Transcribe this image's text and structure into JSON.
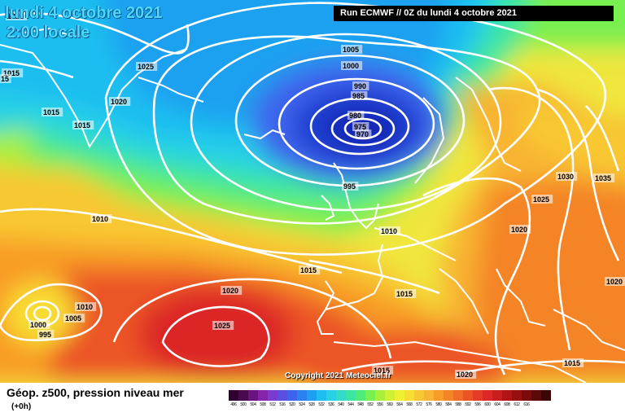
{
  "header": {
    "date_title": "lundi 4 octobre 2021",
    "time_title": "2:00 locale",
    "run_label": "Run ECMWF // 0Z du lundi 4 octobre 2021"
  },
  "copyright": "Copyright 2021 Meteociel.fr",
  "footer": {
    "field_label": "Géop. z500, pression niveau mer",
    "forecast_step": "(+0h)"
  },
  "color_scale": {
    "colors": [
      "#300030",
      "#4b0a50",
      "#6a1482",
      "#8424aa",
      "#7a3cd0",
      "#5a50e0",
      "#3c64ec",
      "#2a82f0",
      "#1ea0f0",
      "#1ebef0",
      "#28d2e6",
      "#34dcc8",
      "#3ce6a0",
      "#50ec78",
      "#78f050",
      "#a8f03c",
      "#d2f032",
      "#f0f032",
      "#f8dc32",
      "#f8c832",
      "#f8b432",
      "#f89c28",
      "#f48428",
      "#f06c28",
      "#ec5428",
      "#e43c28",
      "#dc2828",
      "#c81e1e",
      "#b01414",
      "#961010",
      "#7a0c0c",
      "#5a0a0a",
      "#3c0606"
    ],
    "labels": [
      "496",
      "500",
      "504",
      "508",
      "512",
      "516",
      "520",
      "524",
      "528",
      "532",
      "536",
      "540",
      "544",
      "548",
      "552",
      "556",
      "560",
      "564",
      "568",
      "572",
      "576",
      "580",
      "584",
      "588",
      "592",
      "596",
      "600",
      "604",
      "608",
      "612",
      "616",
      "",
      ""
    ]
  },
  "isobar_labels": [
    {
      "text": "1020"
    },
    {
      "text": "1015"
    },
    {
      "text": "15"
    },
    {
      "text": "1025"
    },
    {
      "text": "1020"
    },
    {
      "text": "1015"
    },
    {
      "text": "1015"
    },
    {
      "text": "1005"
    },
    {
      "text": "1000"
    },
    {
      "text": "990"
    },
    {
      "text": "985"
    },
    {
      "text": "980"
    },
    {
      "text": "975"
    },
    {
      "text": "970"
    },
    {
      "text": "995"
    },
    {
      "text": "1010"
    },
    {
      "text": "1010"
    },
    {
      "text": "1015"
    },
    {
      "text": "1030"
    },
    {
      "text": "1035"
    },
    {
      "text": "1025"
    },
    {
      "text": "1020"
    },
    {
      "text": "1020"
    },
    {
      "text": "1015"
    },
    {
      "text": "1020"
    },
    {
      "text": "1025"
    },
    {
      "text": "1010"
    },
    {
      "text": "1005"
    },
    {
      "text": "1000"
    },
    {
      "text": "995"
    },
    {
      "text": "1015"
    },
    {
      "text": "1020"
    },
    {
      "text": "1015"
    }
  ]
}
